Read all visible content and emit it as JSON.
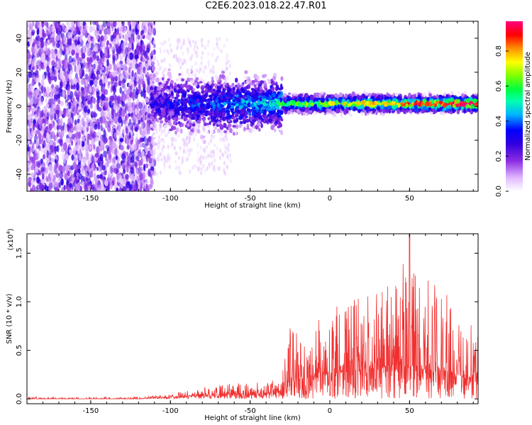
{
  "figure": {
    "title": "C2E6.2023.018.22.47.R01"
  },
  "chart_data": [
    {
      "type": "heatmap",
      "name": "spectrogram",
      "xlabel": "Height of straight line (km)",
      "ylabel": "Frequency (Hz)",
      "xlim": [
        -190,
        93
      ],
      "ylim": [
        -50,
        50
      ],
      "xticks": [
        -150,
        -100,
        -50,
        0,
        50
      ],
      "yticks": [
        -40,
        -20,
        0,
        20,
        40
      ],
      "colorbar": {
        "label": "Normalized spectral amplitude",
        "range": [
          0,
          0.97
        ],
        "ticks": [
          "0.0",
          "0.2",
          "0.4",
          "0.6",
          "0.8"
        ],
        "colormap": [
          "#ffffff",
          "#e8c8ff",
          "#8a2be2",
          "#4b00d8",
          "#0000ff",
          "#00c8ff",
          "#00ff7f",
          "#7fff00",
          "#ffff00",
          "#ff8c00",
          "#ff0000",
          "#ff0080"
        ]
      },
      "note": "noise band across all frequencies for x < -110; signal concentrated near 0-3 Hz for x > -110, amplitude increasing to the right"
    },
    {
      "type": "line",
      "name": "snr",
      "xlabel": "Height of straight line (km)",
      "ylabel": "SNR (10 * v/v)",
      "yscale_label": "(x10",
      "yscale_exp": "4",
      "ylabel_suffix": ")",
      "xlim": [
        -190,
        93
      ],
      "ylim": [
        -0.05,
        1.7
      ],
      "xticks": [
        -150,
        -100,
        -50,
        0,
        50
      ],
      "yticks": [
        "0.0",
        "0.5",
        "1.0",
        "1.5"
      ],
      "color": "#f03030",
      "envelope": {
        "x": [
          -190,
          -120,
          -100,
          -80,
          -60,
          -40,
          -30,
          -27,
          -20,
          0,
          20,
          30,
          40,
          50,
          60,
          70,
          80,
          93
        ],
        "max": [
          0.02,
          0.02,
          0.05,
          0.12,
          0.18,
          0.17,
          0.22,
          0.75,
          0.7,
          0.95,
          1.05,
          1.1,
          1.2,
          1.7,
          1.25,
          1.15,
          1.0,
          0.7
        ],
        "base": [
          0.0,
          0.0,
          0.02,
          0.04,
          0.05,
          0.05,
          0.08,
          0.15,
          0.2,
          0.25,
          0.3,
          0.3,
          0.35,
          0.35,
          0.3,
          0.3,
          0.25,
          0.2
        ]
      }
    }
  ]
}
